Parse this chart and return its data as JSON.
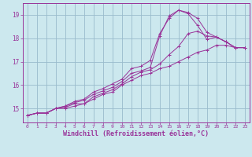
{
  "background_color": "#cce8ee",
  "grid_color": "#99bbcc",
  "line_color": "#993399",
  "xlabel": "Windchill (Refroidissement éolien,°C)",
  "yticks": [
    15,
    16,
    17,
    18,
    19
  ],
  "xticks": [
    0,
    1,
    2,
    3,
    4,
    5,
    6,
    7,
    8,
    9,
    10,
    11,
    12,
    13,
    14,
    15,
    16,
    17,
    18,
    19,
    20,
    21,
    22,
    23
  ],
  "xlim": [
    -0.5,
    23.5
  ],
  "ylim": [
    14.4,
    19.5
  ],
  "lines": [
    {
      "x": [
        0,
        1,
        2,
        3,
        4,
        5,
        6,
        7,
        8,
        9,
        10,
        11,
        12,
        13,
        14,
        15,
        16,
        17,
        18,
        19,
        20,
        21,
        22,
        23
      ],
      "y": [
        14.7,
        14.8,
        14.8,
        15.0,
        15.0,
        15.1,
        15.2,
        15.4,
        15.6,
        15.7,
        16.0,
        16.2,
        16.4,
        16.5,
        16.7,
        16.8,
        17.0,
        17.2,
        17.4,
        17.5,
        17.7,
        17.7,
        17.6,
        17.6
      ]
    },
    {
      "x": [
        0,
        1,
        2,
        3,
        4,
        5,
        6,
        7,
        8,
        9,
        10,
        11,
        12,
        13,
        14,
        15,
        16,
        17,
        18,
        19,
        20,
        21,
        22,
        23
      ],
      "y": [
        14.7,
        14.8,
        14.8,
        15.0,
        15.05,
        15.2,
        15.2,
        15.5,
        15.65,
        15.8,
        16.05,
        16.35,
        16.55,
        16.65,
        16.9,
        17.3,
        17.65,
        18.2,
        18.3,
        18.1,
        18.05,
        17.85,
        17.6,
        17.6
      ]
    },
    {
      "x": [
        0,
        1,
        2,
        3,
        4,
        5,
        6,
        7,
        8,
        9,
        10,
        11,
        12,
        13,
        14,
        15,
        16,
        17,
        18,
        19,
        20,
        21,
        22,
        23
      ],
      "y": [
        14.7,
        14.8,
        14.8,
        15.0,
        15.1,
        15.25,
        15.35,
        15.6,
        15.75,
        15.9,
        16.15,
        16.5,
        16.6,
        16.75,
        18.1,
        18.95,
        19.2,
        19.1,
        18.85,
        18.25,
        18.05,
        17.85,
        17.6,
        17.6
      ]
    },
    {
      "x": [
        0,
        1,
        2,
        3,
        4,
        5,
        6,
        7,
        8,
        9,
        10,
        11,
        12,
        13,
        14,
        15,
        16,
        17,
        18,
        19,
        20,
        21,
        22,
        23
      ],
      "y": [
        14.7,
        14.8,
        14.8,
        15.0,
        15.1,
        15.3,
        15.4,
        15.7,
        15.85,
        16.05,
        16.25,
        16.7,
        16.8,
        17.05,
        18.2,
        18.85,
        19.2,
        19.05,
        18.55,
        17.95,
        18.05,
        17.85,
        17.6,
        17.6
      ]
    }
  ]
}
